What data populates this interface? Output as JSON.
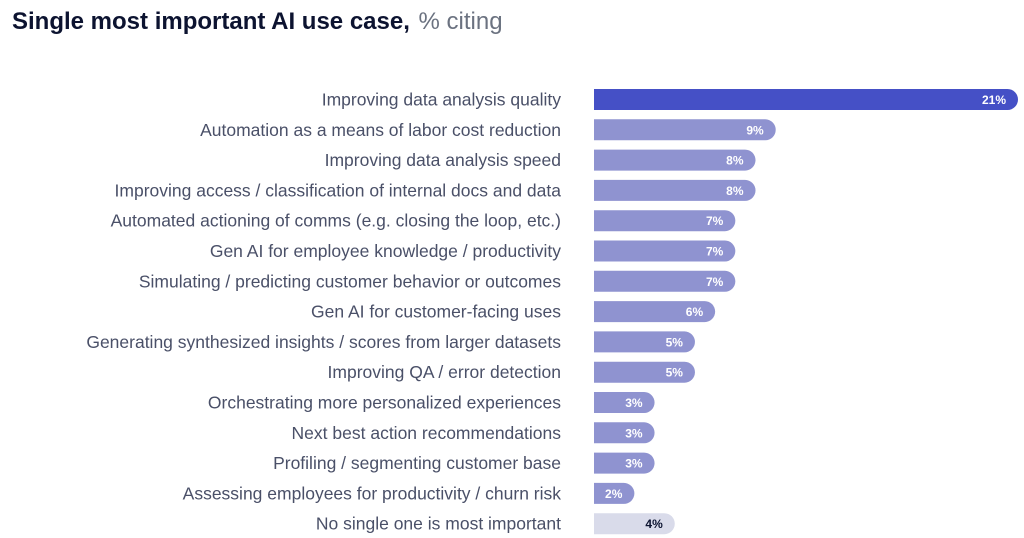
{
  "title": {
    "main": "Single most important AI use case,",
    "sub": "% citing"
  },
  "colors": {
    "highlight": "#4550c6",
    "default": "#8f93d0",
    "muted": "#d9dbea",
    "label": "#4a5068",
    "title": "#0c1330"
  },
  "chart_data": {
    "type": "bar",
    "orientation": "horizontal",
    "title": "Single most important AI use case, % citing",
    "value_suffix": "%",
    "xlim": [
      0,
      21
    ],
    "categories": [
      "Improving data analysis quality",
      "Automation as a means of labor cost reduction",
      "Improving data analysis speed",
      "Improving access / classification of internal docs and data",
      "Automated actioning of comms (e.g. closing the loop, etc.)",
      "Gen AI for employee knowledge / productivity",
      "Simulating / predicting customer behavior or outcomes",
      "Gen AI for customer-facing uses",
      "Generating synthesized insights / scores from larger datasets",
      "Improving QA / error detection",
      "Orchestrating more personalized experiences",
      "Next best action recommendations",
      "Profiling / segmenting customer base",
      "Assessing employees for productivity / churn risk",
      "No single one is most important"
    ],
    "values": [
      21,
      9,
      8,
      8,
      7,
      7,
      7,
      6,
      5,
      5,
      3,
      3,
      3,
      2,
      4
    ],
    "value_labels": [
      "21%",
      "9%",
      "8%",
      "8%",
      "7%",
      "7%",
      "7%",
      "6%",
      "5%",
      "5%",
      "3%",
      "3%",
      "3%",
      "2%",
      "4%"
    ],
    "bar_styles": [
      "highlight",
      "default",
      "default",
      "default",
      "default",
      "default",
      "default",
      "default",
      "default",
      "default",
      "default",
      "default",
      "default",
      "default",
      "muted"
    ]
  }
}
